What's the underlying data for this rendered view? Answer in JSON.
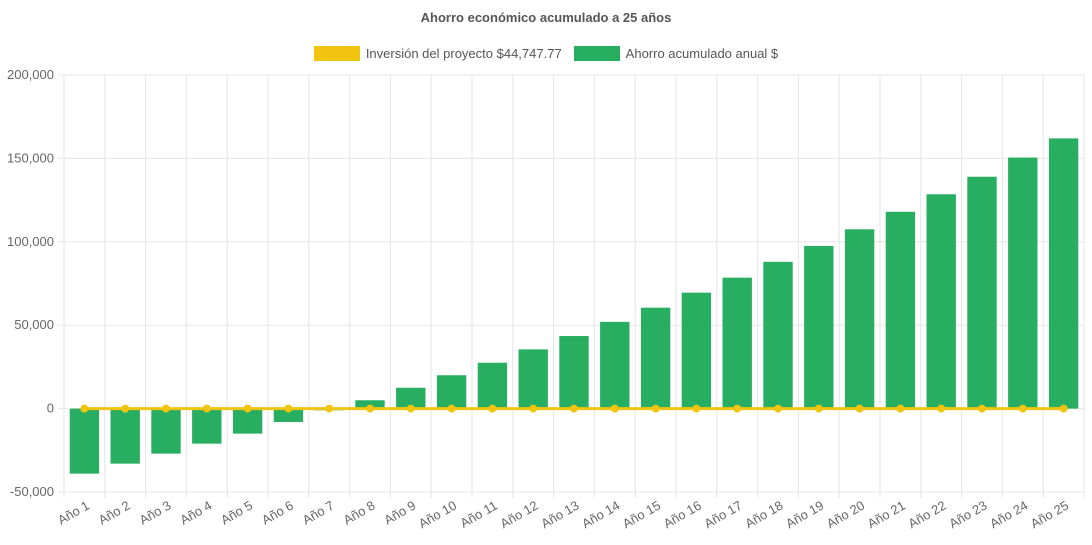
{
  "chart_data": {
    "type": "bar",
    "title": "Ahorro económico acumulado a 25 años",
    "categories": [
      "Año 1",
      "Año 2",
      "Año 3",
      "Año 4",
      "Año 5",
      "Año 6",
      "Año 7",
      "Año 8",
      "Año 9",
      "Año 10",
      "Año 11",
      "Año 12",
      "Año 13",
      "Año 14",
      "Año 15",
      "Año 16",
      "Año 17",
      "Año 18",
      "Año 19",
      "Año 20",
      "Año 21",
      "Año 22",
      "Año 23",
      "Año 24",
      "Año 25"
    ],
    "series": [
      {
        "name": "Inversión del proyecto $44,747.77",
        "type": "line",
        "color": "#f1c40f",
        "values": [
          0,
          0,
          0,
          0,
          0,
          0,
          0,
          0,
          0,
          0,
          0,
          0,
          0,
          0,
          0,
          0,
          0,
          0,
          0,
          0,
          0,
          0,
          0,
          0,
          0
        ]
      },
      {
        "name": "Ahorro acumulado anual $",
        "type": "bar",
        "color": "#27ae60",
        "values": [
          -39000,
          -33000,
          -27000,
          -21000,
          -15000,
          -8000,
          -1000,
          5000,
          12500,
          20000,
          27500,
          35500,
          43500,
          52000,
          60500,
          69500,
          78500,
          88000,
          97500,
          107500,
          118000,
          128500,
          139000,
          150500,
          162000
        ]
      }
    ],
    "ylim": [
      -50000,
      200000
    ],
    "yticks": [
      -50000,
      0,
      50000,
      100000,
      150000,
      200000
    ],
    "ytick_labels": [
      "-50,000",
      "0",
      "50,000",
      "100,000",
      "150,000",
      "200,000"
    ],
    "grid": true,
    "legend_position": "top"
  }
}
